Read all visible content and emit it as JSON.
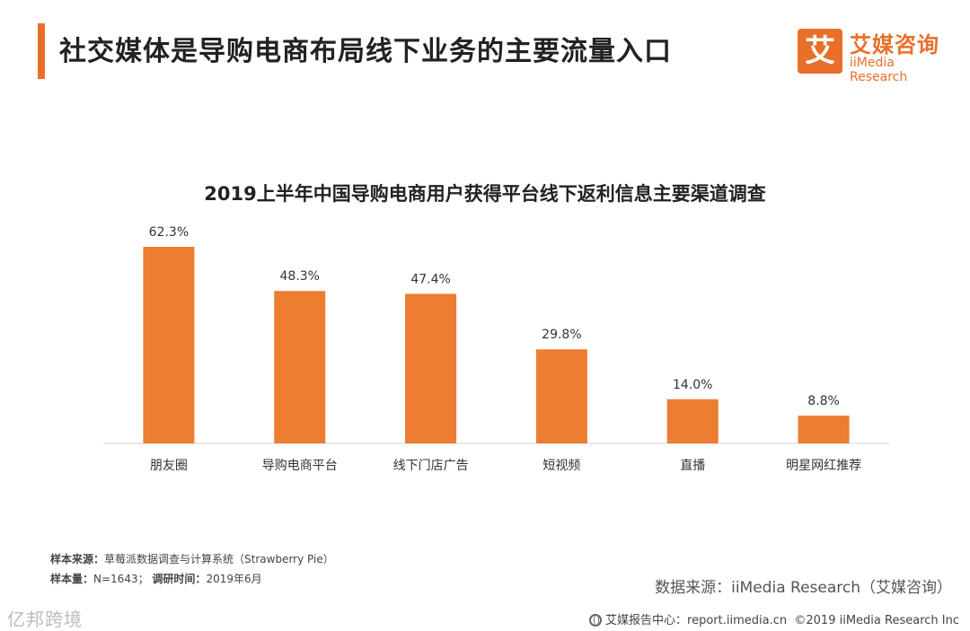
{
  "header": {
    "title": "社交媒体是导购电商布局线下业务的主要流量入口",
    "accent_color": "#E8702A"
  },
  "logo": {
    "glyph": "艾",
    "cn": "艾媒咨询",
    "en": "iiMedia Research",
    "color": "#E8702A"
  },
  "chart_data": {
    "type": "bar",
    "title": "2019上半年中国导购电商用户获得平台线下返利信息主要渠道调查",
    "categories": [
      "朋友圈",
      "导购电商平台",
      "线下门店广告",
      "短视频",
      "直播",
      "明星网红推荐"
    ],
    "values": [
      62.3,
      48.3,
      47.4,
      29.8,
      14.0,
      8.8
    ],
    "value_labels": [
      "62.3%",
      "48.3%",
      "47.4%",
      "29.8%",
      "14.0%",
      "8.8%"
    ],
    "unit": "%",
    "xlabel": "",
    "ylabel": "",
    "ylim": [
      0,
      70
    ],
    "grid": false,
    "bar_color": "#ED7D31"
  },
  "notes": {
    "source_label": "样本来源：",
    "source_value": "草莓派数据调查与计算系统（Strawberry Pie）",
    "sample_label": "样本量：",
    "sample_value": "N=1643；",
    "time_label": "调研时间：",
    "time_value": "2019年6月"
  },
  "data_source": "数据来源：iiMedia Research（艾媒咨询）",
  "footer": {
    "watermark": "亿邦跨境",
    "center_label": "艾媒报告中心：report.iimedia.cn",
    "copyright": "©2019  iiMedia Research  Inc"
  }
}
